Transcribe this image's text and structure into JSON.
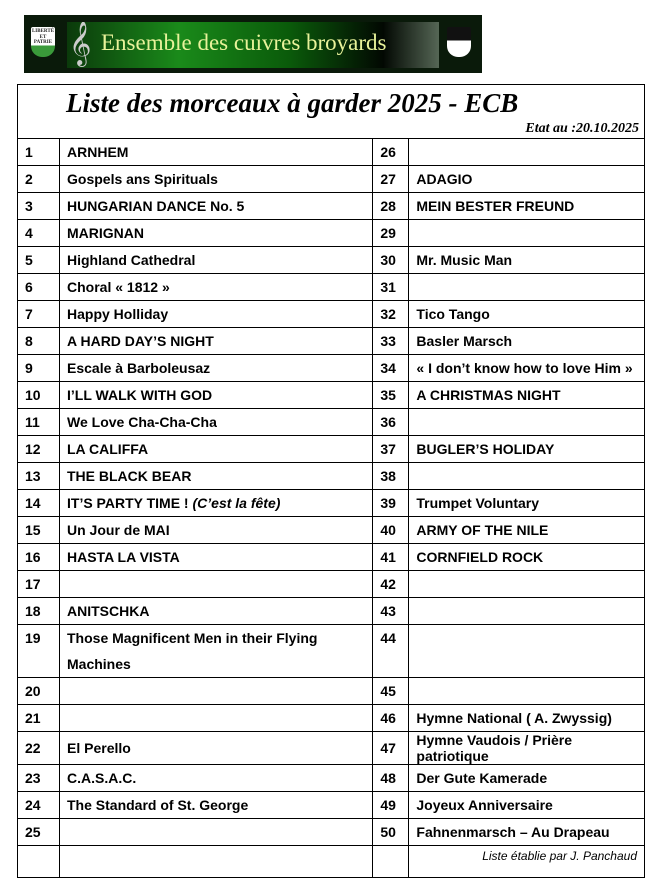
{
  "banner": {
    "text": "Ensemble des cuivres broyards",
    "left_shield_text": "LIBERTÉ ET PATRIE"
  },
  "header": {
    "title": "Liste des morceaux  à  garder  2025 - ECB",
    "date": "Etat au :20.10.2025"
  },
  "left": [
    {
      "n": "1",
      "t": "ARNHEM"
    },
    {
      "n": "2",
      "t": "Gospels ans Spirituals"
    },
    {
      "n": "3",
      "t": "HUNGARIAN DANCE No. 5"
    },
    {
      "n": "4",
      "t": "MARIGNAN"
    },
    {
      "n": "5",
      "t": "Highland Cathedral"
    },
    {
      "n": "6",
      "t": "Choral  « 1812 »"
    },
    {
      "n": "7",
      "t": "Happy Holliday"
    },
    {
      "n": "8",
      "t": "A HARD DAY’S NIGHT"
    },
    {
      "n": "9",
      "t": "Escale à Barboleusaz"
    },
    {
      "n": "10",
      "t": "I’LL WALK WITH GOD"
    },
    {
      "n": "11",
      "t": "We Love Cha-Cha-Cha"
    },
    {
      "n": "12",
      "t": "LA CALIFFA"
    },
    {
      "n": "13",
      "t": "THE BLACK BEAR"
    },
    {
      "n": "14",
      "t": "IT’S PARTY TIME ! ",
      "ti": "(C’est la fête)"
    },
    {
      "n": "15",
      "t": "Un Jour de MAI"
    },
    {
      "n": "16",
      "t": "HASTA  LA  VISTA"
    },
    {
      "n": "17",
      "t": ""
    },
    {
      "n": "18",
      "t": "ANITSCHKA"
    },
    {
      "n": "19",
      "t": "Those Magnificent Men in their Flying Machines"
    },
    {
      "n": "20",
      "t": ""
    },
    {
      "n": "21",
      "t": ""
    },
    {
      "n": "22",
      "t": "El Perello"
    },
    {
      "n": "23",
      "t": "C.A.S.A.C."
    },
    {
      "n": "24",
      "t": "The Standard of St. George"
    },
    {
      "n": "25",
      "t": ""
    }
  ],
  "right": [
    {
      "n": "26",
      "t": ""
    },
    {
      "n": "27",
      "t": "ADAGIO"
    },
    {
      "n": "28",
      "t": "MEIN  BESTER  FREUND"
    },
    {
      "n": "29",
      "t": ""
    },
    {
      "n": "30",
      "t": "Mr. Music Man"
    },
    {
      "n": "31",
      "t": ""
    },
    {
      "n": "32",
      "t": "Tico Tango"
    },
    {
      "n": "33",
      "t": "Basler Marsch"
    },
    {
      "n": "34",
      "t": "« I don’t know how to love Him »"
    },
    {
      "n": "35",
      "t": "A CHRISTMAS NIGHT"
    },
    {
      "n": "36",
      "t": ""
    },
    {
      "n": "37",
      "t": "BUGLER’S HOLIDAY"
    },
    {
      "n": "38",
      "t": ""
    },
    {
      "n": "39",
      "t": "Trumpet Voluntary"
    },
    {
      "n": "40",
      "t": "ARMY OF THE NILE"
    },
    {
      "n": "41",
      "t": "CORNFIELD  ROCK"
    },
    {
      "n": "42",
      "t": ""
    },
    {
      "n": "43",
      "t": ""
    },
    {
      "n": "44",
      "t": ""
    },
    {
      "n": "45",
      "t": ""
    },
    {
      "n": "46",
      "t": "Hymne National  ( A. Zwyssig)"
    },
    {
      "n": "47",
      "t": "Hymne Vaudois / Prière patriotique"
    },
    {
      "n": "48",
      "t": "Der Gute Kamerade"
    },
    {
      "n": "49",
      "t": "Joyeux Anniversaire"
    },
    {
      "n": "50",
      "t": "Fahnenmarsch – Au Drapeau"
    }
  ],
  "footer": {
    "author": "Liste établie par J. Panchaud"
  }
}
